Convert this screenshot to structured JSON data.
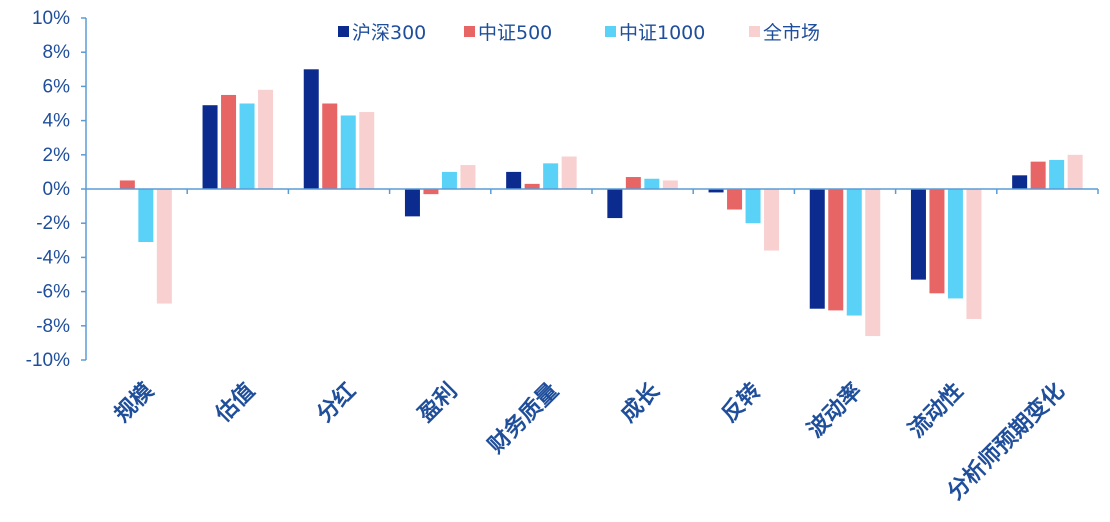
{
  "chart_data": {
    "type": "bar",
    "categories": [
      "规模",
      "估值",
      "分红",
      "盈利",
      "财务质量",
      "成长",
      "反转",
      "波动率",
      "流动性",
      "分析师预期变化"
    ],
    "series": [
      {
        "name": "沪深300",
        "color": "#0C2B8F",
        "values": [
          0.0,
          4.9,
          7.0,
          -1.6,
          1.0,
          -1.7,
          -0.2,
          -7.0,
          -5.3,
          0.8
        ]
      },
      {
        "name": "中证500",
        "color": "#E76565",
        "values": [
          0.5,
          5.5,
          5.0,
          -0.3,
          0.3,
          0.7,
          -1.2,
          -7.1,
          -6.1,
          1.6
        ]
      },
      {
        "name": "中证1000",
        "color": "#5AD2F8",
        "values": [
          -3.1,
          5.0,
          4.3,
          1.0,
          1.5,
          0.6,
          -2.0,
          -7.4,
          -6.4,
          1.7
        ]
      },
      {
        "name": "全市场",
        "color": "#F8D0D0",
        "values": [
          -6.7,
          5.8,
          4.5,
          1.4,
          1.9,
          0.5,
          -3.6,
          -8.6,
          -7.6,
          2.0
        ]
      }
    ],
    "ylim": [
      -10,
      10
    ],
    "yticks": [
      10,
      8,
      6,
      4,
      2,
      0,
      -2,
      -4,
      -6,
      -8,
      -10
    ],
    "ytick_labels": [
      "10%",
      "8%",
      "6%",
      "4%",
      "2%",
      "0%",
      "-2%",
      "-4%",
      "-6%",
      "-8%",
      "-10%"
    ],
    "legend_position": "top",
    "grid": false,
    "axis_color": "#5B9BD5"
  }
}
